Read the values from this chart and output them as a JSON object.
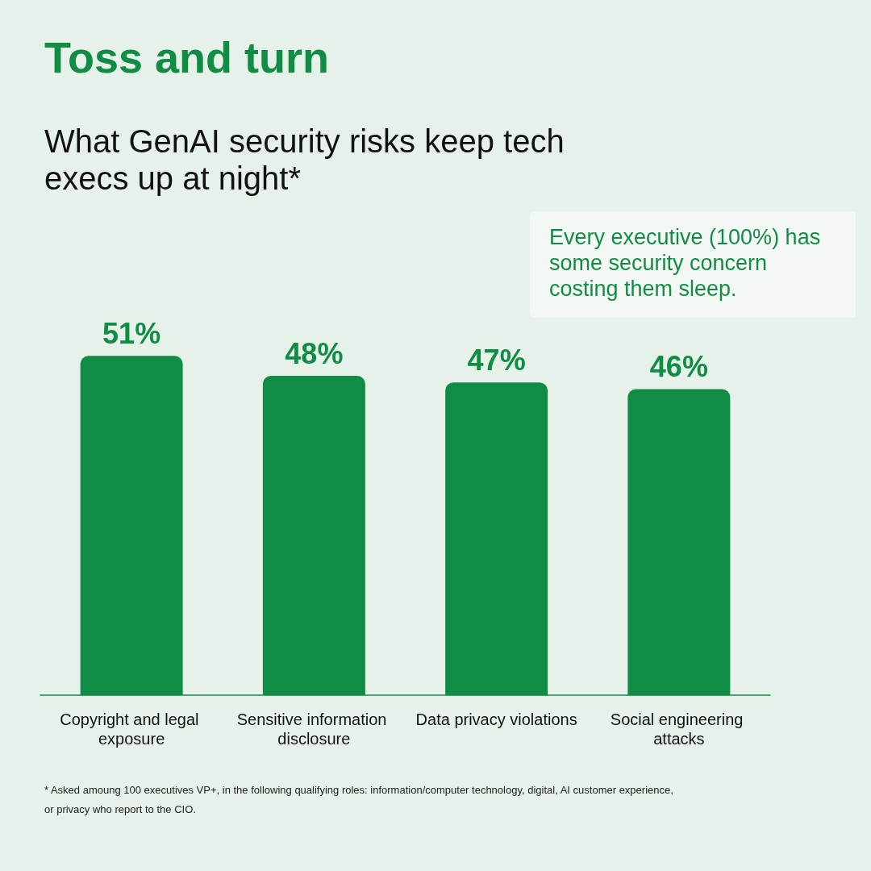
{
  "chart_data": {
    "type": "bar",
    "title": "Toss and turn",
    "subtitle": "What GenAI security risks keep tech execs up at night*",
    "categories": [
      "Copyright and legal exposure",
      "Sensitive information disclosure",
      "Data privacy violations",
      "Social engineering attacks"
    ],
    "values": [
      51,
      48,
      47,
      46
    ],
    "value_labels": [
      "51%",
      "48%",
      "47%",
      "46%"
    ],
    "color": "#118c44",
    "annotations": [
      "Every executive (100%) has some security concern costing them sleep.",
      "* Asked amoung 100 executives VP+, in the following qualifying roles: information/computer technology, digital, AI customer experience, or privacy who report to the CIO."
    ]
  }
}
